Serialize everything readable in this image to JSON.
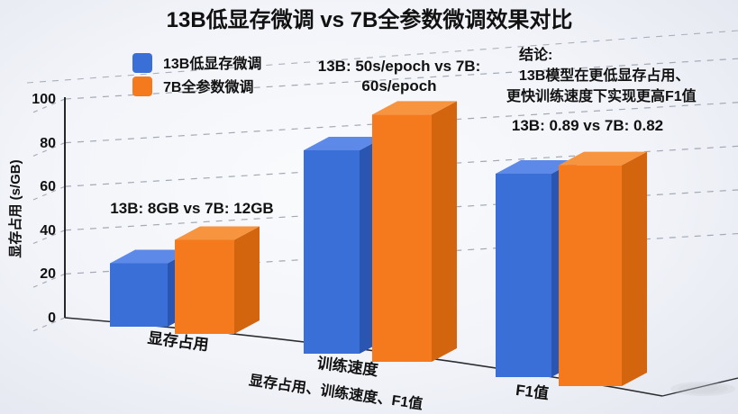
{
  "title": "13B低显存微调 vs 7B全参数微调效果对比",
  "legend": {
    "items": [
      {
        "label": "13B低显存微调",
        "color": "#3a6fd8"
      },
      {
        "label": "7B全参数微调",
        "color": "#f57a1e"
      }
    ]
  },
  "axes": {
    "y_label": "显存占用 (s/GB)",
    "y_ticks": [
      "100",
      "80",
      "60",
      "40",
      "20",
      "0"
    ],
    "x_title": "显存占用、训练速度、F1值",
    "categories": [
      "显存占用",
      "训练速度",
      "F1值"
    ]
  },
  "annotations": {
    "memory": "13B: 8GB vs 7B: 12GB",
    "speed_line1": "13B: 50s/epoch vs 7B:",
    "speed_line2": "60s/epoch",
    "conclusion_title": "结论:",
    "conclusion_line1": "13B模型在更低显存占用、",
    "conclusion_line2": "更快训练速度下实现更高F1值",
    "f1": "13B: 0.89 vs 7B: 0.82"
  },
  "chart_data": {
    "type": "bar",
    "projection": "3d",
    "title": "13B低显存微调 vs 7B全参数微调效果对比",
    "categories": [
      "显存占用",
      "训练速度",
      "F1值"
    ],
    "series": [
      {
        "name": "13B低显存微调",
        "color": "#3a6fd8",
        "metric_values": [
          "8GB",
          "50s/epoch",
          "0.89"
        ],
        "display_heights": [
          29,
          93,
          93
        ]
      },
      {
        "name": "7B全参数微调",
        "color": "#f57a1e",
        "metric_values": [
          "12GB",
          "60s/epoch",
          "0.82"
        ],
        "display_heights": [
          43,
          113,
          101
        ]
      }
    ],
    "ylabel": "显存占用 (s/GB)",
    "xlabel": "显存占用、训练速度、F1值",
    "ylim": [
      0,
      100
    ],
    "y_tick_values": [
      0,
      20,
      40,
      60,
      80,
      100
    ],
    "grid": true,
    "grid_style": "dashed",
    "legend_position": "top-left",
    "annotations": [
      "13B: 8GB vs 7B: 12GB",
      "13B: 50s/epoch vs 7B: 60s/epoch",
      "结论: 13B模型在更低显存占用、更快训练速度下实现更高F1值",
      "13B: 0.89 vs 7B: 0.82"
    ]
  }
}
